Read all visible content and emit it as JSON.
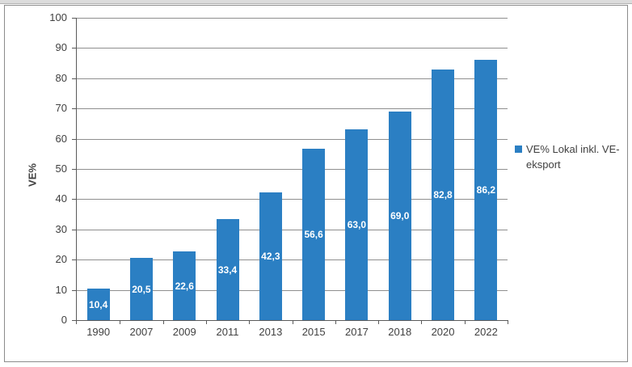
{
  "chart_data": {
    "type": "bar",
    "title": "",
    "categories": [
      "1990",
      "2007",
      "2009",
      "2011",
      "2013",
      "2015",
      "2017",
      "2018",
      "2020",
      "2022"
    ],
    "values": [
      10.4,
      20.5,
      22.6,
      33.4,
      42.3,
      56.6,
      63.0,
      69.0,
      82.8,
      86.2
    ],
    "value_labels": [
      "10,4",
      "20,5",
      "22,6",
      "33,4",
      "42,3",
      "56,6",
      "63,0",
      "69,0",
      "82,8",
      "86,2"
    ],
    "xlabel": "",
    "ylabel": "VE%",
    "ylim": [
      0,
      100
    ],
    "yticks": [
      0,
      10,
      20,
      30,
      40,
      50,
      60,
      70,
      80,
      90,
      100
    ],
    "grid": true,
    "legend": {
      "position": "right",
      "entries": [
        {
          "label": "VE% Lokal inkl. VE-eksport",
          "color": "#2b7fc3"
        }
      ]
    },
    "bar_color": "#2b7fc3",
    "data_label_color": "#ffffff"
  },
  "colors": {
    "accent_blue": "#2b7fc3",
    "gridline": "#8f8f8f",
    "axis": "#5a5a5a",
    "text": "#404040",
    "frame_border": "#8c8c8c",
    "background": "#ffffff"
  }
}
